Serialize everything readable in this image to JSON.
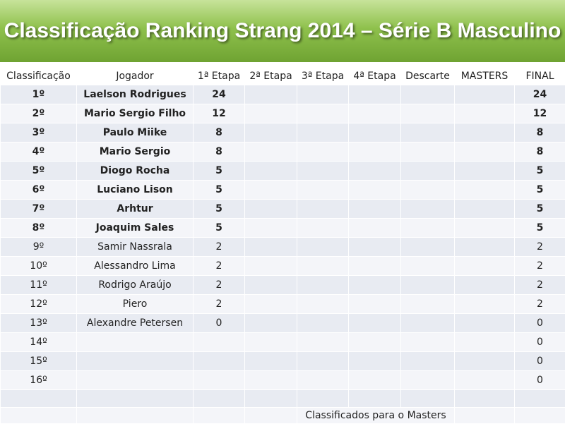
{
  "header": {
    "title": "Classificação Ranking Strang 2014 – Série B Masculino"
  },
  "table": {
    "columns": [
      "Classificação",
      "Jogador",
      "1ª Etapa",
      "2ª Etapa",
      "3ª Etapa",
      "4ª Etapa",
      "Descarte",
      "MASTERS",
      "FINAL"
    ],
    "rows": [
      {
        "pos": "1º",
        "player": "Laelson Rodrigues",
        "etapa1": 24,
        "final": 24,
        "bold": true
      },
      {
        "pos": "2º",
        "player": "Mario Sergio Filho",
        "etapa1": 12,
        "final": 12,
        "bold": true
      },
      {
        "pos": "3º",
        "player": "Paulo Miike",
        "etapa1": 8,
        "final": 8,
        "bold": true
      },
      {
        "pos": "4º",
        "player": "Mario Sergio",
        "etapa1": 8,
        "final": 8,
        "bold": true
      },
      {
        "pos": "5º",
        "player": "Diogo Rocha",
        "etapa1": 5,
        "final": 5,
        "bold": true
      },
      {
        "pos": "6º",
        "player": "Luciano Lison",
        "etapa1": 5,
        "final": 5,
        "bold": true
      },
      {
        "pos": "7º",
        "player": "Arhtur",
        "etapa1": 5,
        "final": 5,
        "bold": true
      },
      {
        "pos": "8º",
        "player": "Joaquim Sales",
        "etapa1": 5,
        "final": 5,
        "bold": true
      },
      {
        "pos": "9º",
        "player": "Samir Nassrala",
        "etapa1": 2,
        "final": 2
      },
      {
        "pos": "10º",
        "player": "Alessandro Lima",
        "etapa1": 2,
        "final": 2
      },
      {
        "pos": "11º",
        "player": "Rodrigo Araújo",
        "etapa1": 2,
        "final": 2
      },
      {
        "pos": "12º",
        "player": "Piero",
        "etapa1": 2,
        "final": 2
      },
      {
        "pos": "13º",
        "player": "Alexandre Petersen",
        "etapa1": 0,
        "final": 0
      },
      {
        "pos": "14º",
        "final": 0
      },
      {
        "pos": "15º",
        "final": 0
      },
      {
        "pos": "16º",
        "final": 0
      }
    ],
    "footer": "Classificados para o Masters"
  }
}
